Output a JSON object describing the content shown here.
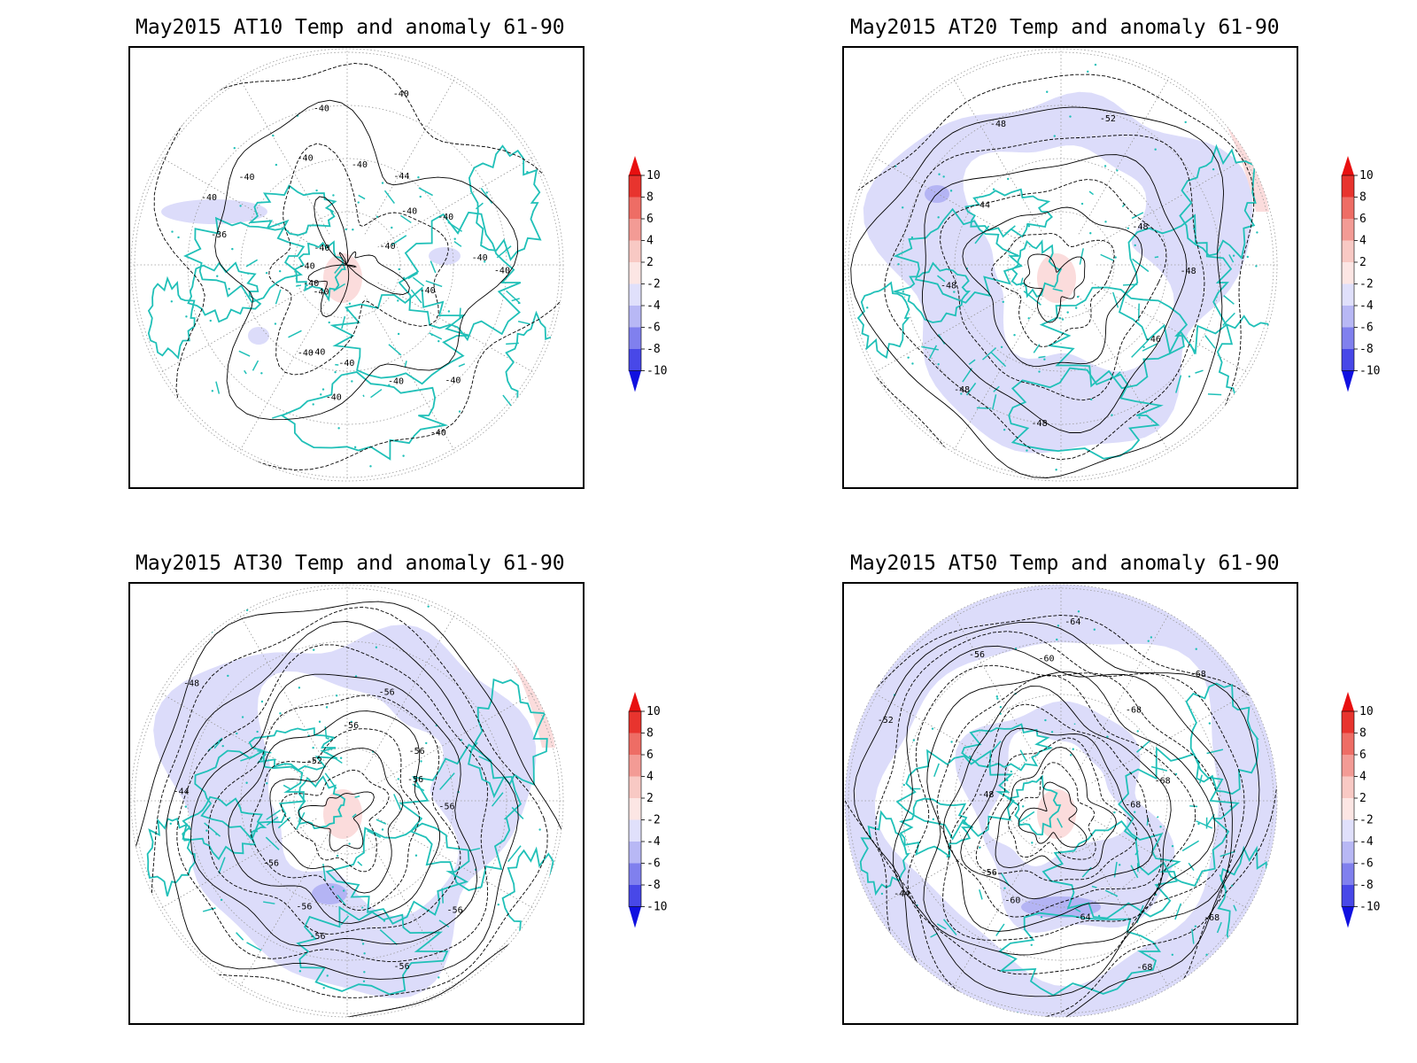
{
  "panels": [
    {
      "title": "May2015 AT10 Temp and anomaly 61-90",
      "contour_labels": [
        "-40",
        "-40",
        "-40",
        "-40",
        "-40",
        "-40",
        "-40",
        "-40",
        "-40",
        "-40",
        "-40",
        "-40",
        "-36",
        "-40",
        "-40",
        "-40",
        "-40",
        "-40",
        "-40",
        "-40",
        "-44",
        "-40",
        "-40",
        "-40",
        "-40"
      ],
      "anomaly_fill": "weak"
    },
    {
      "title": "May2015 AT20 Temp and anomaly 61-90",
      "contour_labels": [
        "-48",
        "-46",
        "-48",
        "-48",
        "-48",
        "-44",
        "-48",
        "-52",
        "-48"
      ],
      "anomaly_fill": "ring"
    },
    {
      "title": "May2015 AT30 Temp and anomaly 61-90",
      "contour_labels": [
        "-56",
        "-56",
        "-56",
        "-56",
        "-56",
        "-56",
        "-44",
        "-48",
        "-52",
        "-56",
        "-56",
        "-56",
        "-56"
      ],
      "anomaly_fill": "ring"
    },
    {
      "title": "May2015 AT50 Temp and anomaly 61-90",
      "contour_labels": [
        "-68",
        "-68",
        "-68",
        "-64",
        "-60",
        "-56",
        "-44",
        "-48",
        "-52",
        "-56",
        "-60",
        "-64",
        "-68",
        "-68",
        "-68"
      ],
      "anomaly_fill": "full"
    }
  ],
  "colorbar": {
    "labels": [
      "10",
      "8",
      "6",
      "4",
      "2",
      "-2",
      "-4",
      "-6",
      "-8",
      "-10"
    ],
    "colors": [
      "#e8342e",
      "#ee6d65",
      "#f39b95",
      "#f8c9c4",
      "#fce6e4",
      "#ffffff",
      "#e0e0fb",
      "#b8b8f5",
      "#8080ee",
      "#4848e8",
      "#1515e0"
    ],
    "top_arrow_color": "#e81010",
    "bottom_arrow_color": "#1010e0"
  },
  "colors": {
    "coastline": "#20c0b8",
    "contour": "#000000",
    "grid": "#9a9a9a",
    "anom_neg_light": "#dcdcfa",
    "anom_neg_mid": "#b4b4f4",
    "anom_pos_light": "#fbdcdc"
  }
}
